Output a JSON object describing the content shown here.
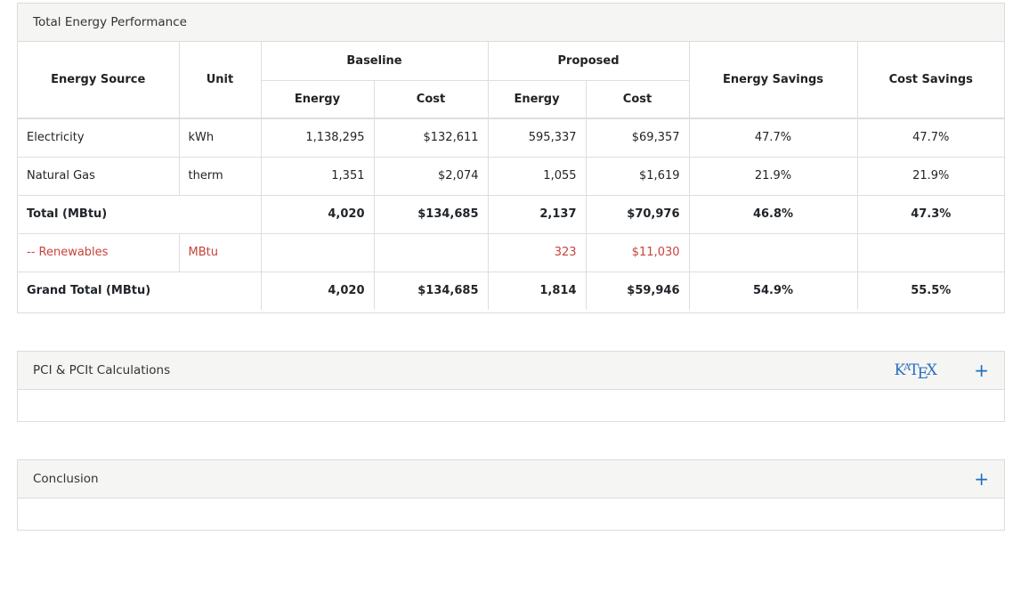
{
  "energy_panel": {
    "title": "Total Energy Performance",
    "headers": {
      "energy_source": "Energy Source",
      "unit": "Unit",
      "baseline": "Baseline",
      "proposed": "Proposed",
      "energy": "Energy",
      "cost": "Cost",
      "energy_savings": "Energy Savings",
      "cost_savings": "Cost Savings"
    },
    "rows": [
      {
        "source": "Electricity",
        "unit": "kWh",
        "b_energy": "1,138,295",
        "b_cost": "$132,611",
        "p_energy": "595,337",
        "p_cost": "$69,357",
        "e_sav": "47.7%",
        "c_sav": "47.7%"
      },
      {
        "source": "Natural Gas",
        "unit": "therm",
        "b_energy": "1,351",
        "b_cost": "$2,074",
        "p_energy": "1,055",
        "p_cost": "$1,619",
        "e_sav": "21.9%",
        "c_sav": "21.9%"
      },
      {
        "source": "Total (MBtu)",
        "unit": "",
        "b_energy": "4,020",
        "b_cost": "$134,685",
        "p_energy": "2,137",
        "p_cost": "$70,976",
        "e_sav": "46.8%",
        "c_sav": "47.3%"
      },
      {
        "source": "-- Renewables",
        "unit": "MBtu",
        "b_energy": "",
        "b_cost": "",
        "p_energy": "323",
        "p_cost": "$11,030",
        "e_sav": "",
        "c_sav": ""
      },
      {
        "source": "Grand Total (MBtu)",
        "unit": "",
        "b_energy": "4,020",
        "b_cost": "$134,685",
        "p_energy": "1,814",
        "p_cost": "$59,946",
        "e_sav": "54.9%",
        "c_sav": "55.5%"
      }
    ]
  },
  "pci_panel": {
    "title": "PCI & PCIt Calculations",
    "logo": {
      "k": "K",
      "a": "A",
      "t": "T",
      "e": "E",
      "x": "X"
    },
    "expand_symbol": "+"
  },
  "conclusion_panel": {
    "title": "Conclusion",
    "expand_symbol": "+"
  },
  "colors": {
    "renewables_text": "#c8423b",
    "accent_blue": "#1f6fbf",
    "header_bg": "#f5f5f4"
  }
}
